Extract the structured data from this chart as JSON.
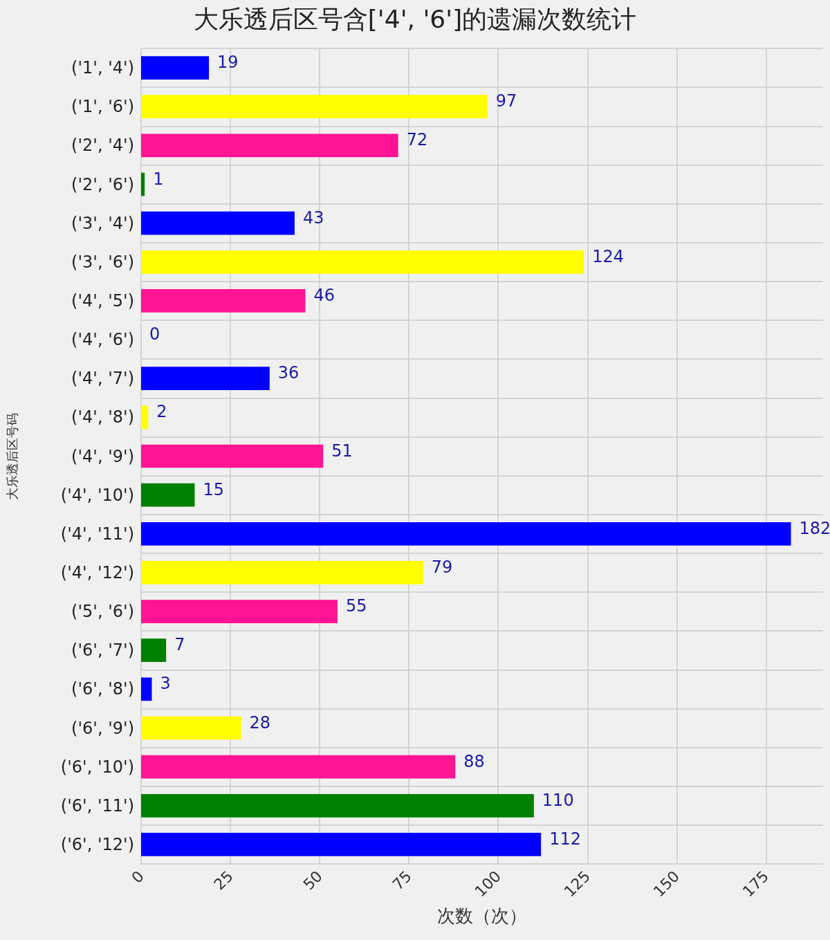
{
  "chart_data": {
    "type": "bar",
    "orientation": "horizontal",
    "title": "大乐透后区号含['4', '6']的遗漏次数统计",
    "xlabel": "次数（次）",
    "ylabel": "大乐透后区号码",
    "categories": [
      "('1', '4')",
      "('1', '6')",
      "('2', '4')",
      "('2', '6')",
      "('3', '4')",
      "('3', '6')",
      "('4', '5')",
      "('4', '6')",
      "('4', '7')",
      "('4', '8')",
      "('4', '9')",
      "('4', '10')",
      "('4', '11')",
      "('4', '12')",
      "('5', '6')",
      "('6', '7')",
      "('6', '8')",
      "('6', '9')",
      "('6', '10')",
      "('6', '11')",
      "('6', '12')"
    ],
    "values": [
      19,
      97,
      72,
      1,
      43,
      124,
      46,
      0,
      36,
      2,
      51,
      15,
      182,
      79,
      55,
      7,
      3,
      28,
      88,
      110,
      112
    ],
    "colors": [
      "#0000ff",
      "#ffff00",
      "#ff1493",
      "#008000",
      "#0000ff",
      "#ffff00",
      "#ff1493",
      "#008000",
      "#0000ff",
      "#ffff00",
      "#ff1493",
      "#008000",
      "#0000ff",
      "#ffff00",
      "#ff1493",
      "#008000",
      "#0000ff",
      "#ffff00",
      "#ff1493",
      "#008000",
      "#0000ff"
    ],
    "xlim": [
      0,
      191
    ],
    "xticks": [
      0,
      25,
      50,
      75,
      100,
      125,
      150,
      175
    ],
    "data_labels": true,
    "grid": true
  }
}
